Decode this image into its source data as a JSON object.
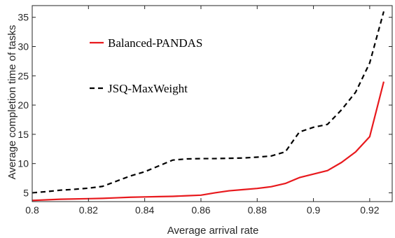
{
  "chart_data": {
    "type": "line",
    "title": "",
    "xlabel": "Average arrival rate",
    "ylabel": "Average completion time of tasks",
    "xlim": [
      0.8,
      0.928
    ],
    "ylim": [
      3.5,
      37
    ],
    "xticks": [
      0.8,
      0.82,
      0.84,
      0.86,
      0.88,
      0.9,
      0.92
    ],
    "xtick_labels": [
      "0.8",
      "0.82",
      "0.84",
      "0.86",
      "0.88",
      "0.9",
      "0.92"
    ],
    "yticks": [
      5,
      10,
      15,
      20,
      25,
      30,
      35
    ],
    "ytick_labels": [
      "5",
      "10",
      "15",
      "20",
      "25",
      "30",
      "35"
    ],
    "grid": false,
    "legend_position": "upper-left",
    "series": [
      {
        "name": "Balanced-PANDAS",
        "color": "#e8191d",
        "style": "solid",
        "x": [
          0.8,
          0.81,
          0.82,
          0.825,
          0.83,
          0.835,
          0.84,
          0.845,
          0.85,
          0.855,
          0.86,
          0.865,
          0.87,
          0.875,
          0.88,
          0.885,
          0.89,
          0.895,
          0.9,
          0.905,
          0.91,
          0.915,
          0.92,
          0.925
        ],
        "y": [
          3.7,
          3.9,
          4.0,
          4.05,
          4.15,
          4.25,
          4.3,
          4.35,
          4.4,
          4.5,
          4.6,
          5.0,
          5.35,
          5.55,
          5.75,
          6.05,
          6.6,
          7.6,
          8.2,
          8.8,
          10.2,
          12.0,
          14.6,
          24.0
        ]
      },
      {
        "name": "JSQ-MaxWeight",
        "color": "#000000",
        "style": "dashed",
        "x": [
          0.8,
          0.805,
          0.81,
          0.815,
          0.82,
          0.825,
          0.83,
          0.835,
          0.84,
          0.845,
          0.85,
          0.855,
          0.86,
          0.865,
          0.87,
          0.875,
          0.88,
          0.885,
          0.89,
          0.895,
          0.9,
          0.905,
          0.91,
          0.915,
          0.92,
          0.925
        ],
        "y": [
          5.0,
          5.2,
          5.45,
          5.6,
          5.8,
          6.1,
          7.0,
          7.9,
          8.6,
          9.6,
          10.6,
          10.8,
          10.85,
          10.85,
          10.9,
          10.95,
          11.1,
          11.3,
          12.0,
          15.4,
          16.2,
          16.7,
          19.2,
          22.2,
          27.2,
          36.0
        ]
      }
    ]
  }
}
